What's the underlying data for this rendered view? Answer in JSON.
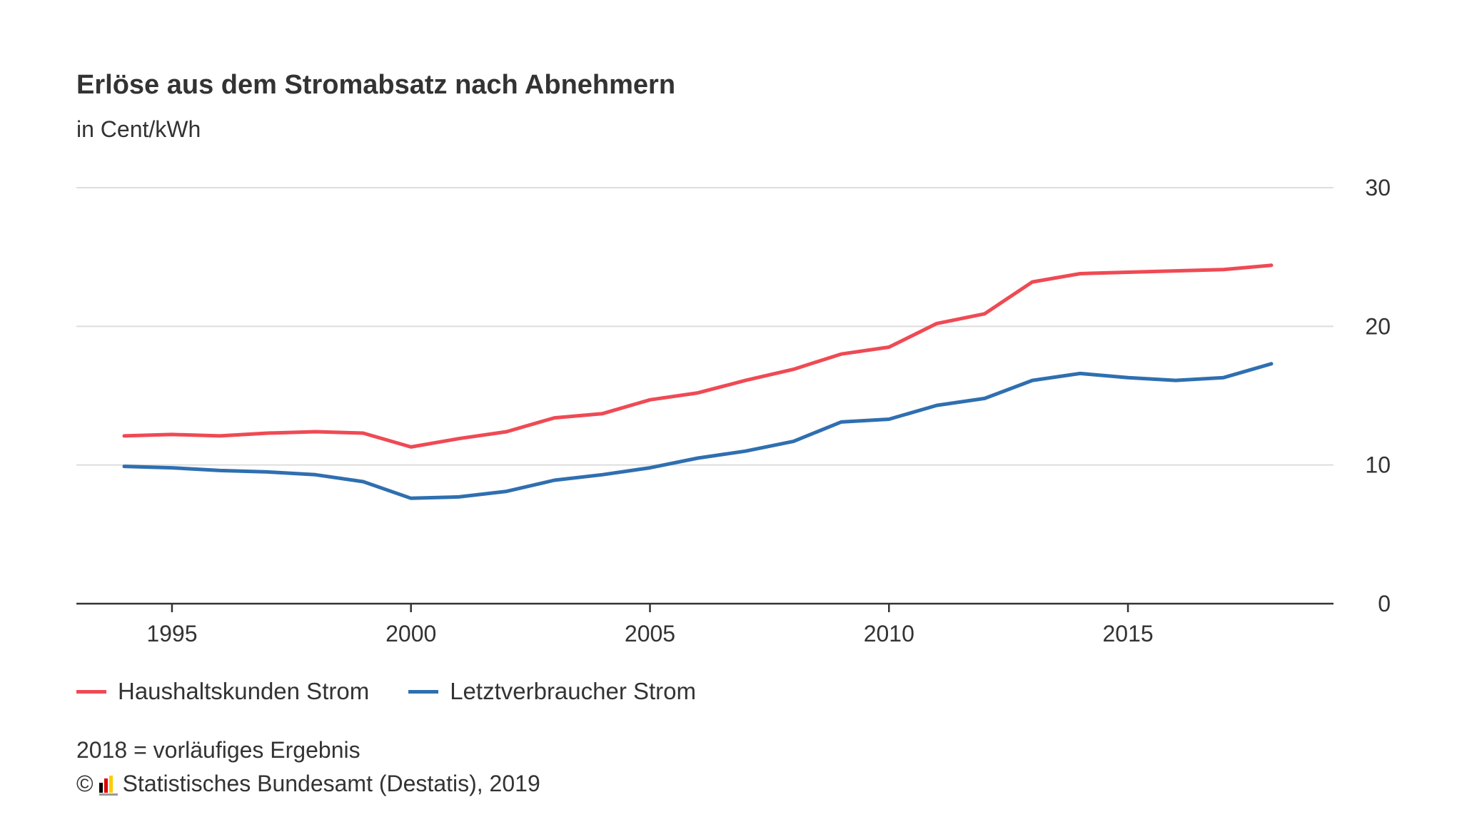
{
  "title": "Erlöse aus dem Stromabsatz nach Abnehmern",
  "subtitle": "in Cent/kWh",
  "note": "2018 = vorläufiges Ergebnis",
  "source": {
    "copyright_symbol": "©",
    "text": "Statistisches Bundesamt (Destatis), 2019",
    "logo_icon": "destatis-logo-icon"
  },
  "colors": {
    "haushalt": "#ef4a54",
    "letzt": "#2f6fb0",
    "grid": "#dddddd",
    "axis": "#333333"
  },
  "chart_data": {
    "type": "line",
    "x": [
      1994,
      1995,
      1996,
      1997,
      1998,
      1999,
      2000,
      2001,
      2002,
      2003,
      2004,
      2005,
      2006,
      2007,
      2008,
      2009,
      2010,
      2011,
      2012,
      2013,
      2014,
      2015,
      2016,
      2017,
      2018
    ],
    "series": [
      {
        "name": "Haushaltskunden Strom",
        "color": "#ef4a54",
        "values": [
          12.1,
          12.2,
          12.1,
          12.3,
          12.4,
          12.3,
          11.3,
          11.9,
          12.4,
          13.4,
          13.7,
          14.7,
          15.2,
          16.1,
          16.9,
          18.0,
          18.5,
          20.2,
          20.9,
          23.2,
          23.8,
          23.9,
          24.0,
          24.1,
          24.4
        ]
      },
      {
        "name": "Letztverbraucher Strom",
        "color": "#2f6fb0",
        "values": [
          9.9,
          9.8,
          9.6,
          9.5,
          9.3,
          8.8,
          7.6,
          7.7,
          8.1,
          8.9,
          9.3,
          9.8,
          10.5,
          11.0,
          11.7,
          13.1,
          13.3,
          14.3,
          14.8,
          16.1,
          16.6,
          16.3,
          16.1,
          16.3,
          17.3
        ]
      }
    ],
    "xticks": [
      1995,
      2000,
      2005,
      2010,
      2015
    ],
    "yticks": [
      0,
      10,
      20,
      30
    ],
    "xlim": [
      1993,
      2019.3
    ],
    "ylim": [
      0,
      30
    ],
    "xlabel": "",
    "ylabel": "",
    "grid": true,
    "legend_position": "bottom-left"
  }
}
